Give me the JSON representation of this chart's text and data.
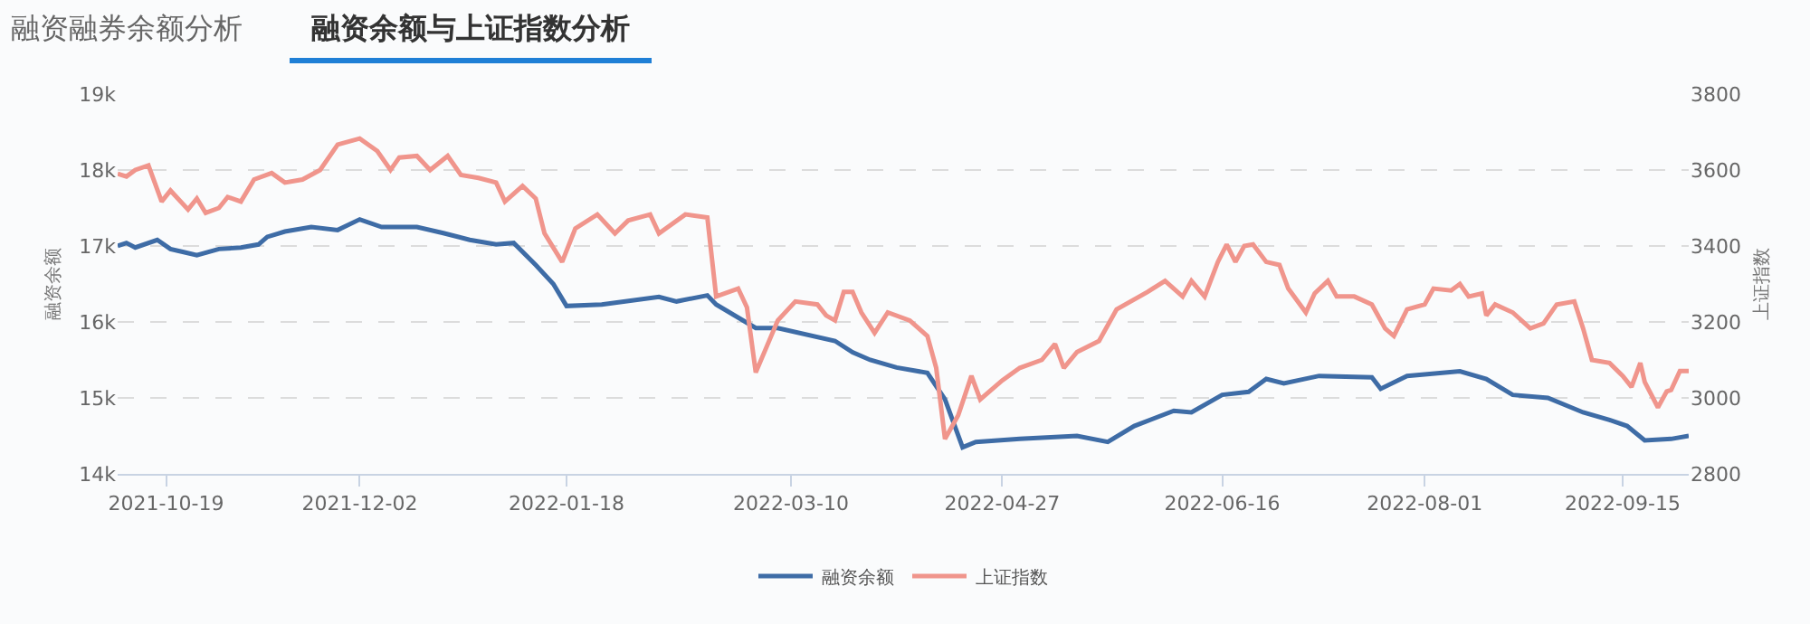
{
  "chart_data": {
    "type": "line",
    "title": "融资余额与上证指数分析",
    "annotations": [
      "融资融券余额分析"
    ],
    "ylabel": "融资余额",
    "y2label": "上证指数",
    "xlim": [
      "2021-10-08",
      "2022-09-30"
    ],
    "xticks": [
      "2021-10-19",
      "2021-12-02",
      "2022-01-18",
      "2022-03-10",
      "2022-04-27",
      "2022-06-16",
      "2022-08-01",
      "2022-09-15"
    ],
    "ylim": [
      14000,
      19000
    ],
    "yticks": [
      {
        "value": 14000,
        "label": "14k"
      },
      {
        "value": 15000,
        "label": "15k"
      },
      {
        "value": 16000,
        "label": "16k"
      },
      {
        "value": 17000,
        "label": "17k"
      },
      {
        "value": 18000,
        "label": "18k"
      },
      {
        "value": 19000,
        "label": "19k"
      }
    ],
    "y2lim": [
      2800,
      3800
    ],
    "y2ticks": [
      2800,
      3000,
      3200,
      3400,
      3600,
      3800
    ],
    "grid": "y",
    "legend": "bottom",
    "marker": "none",
    "line_style": "solid",
    "series": [
      {
        "name": "融资余额",
        "color": "#3e6ca6",
        "x": [
          "2021-10-08",
          "2021-10-10",
          "2021-10-12",
          "2021-10-17",
          "2021-10-20",
          "2021-10-23",
          "2021-10-26",
          "2021-10-31",
          "2021-11-05",
          "2021-11-09",
          "2021-11-11",
          "2021-11-15",
          "2021-11-21",
          "2021-11-27",
          "2021-12-02",
          "2021-12-07",
          "2021-12-15",
          "2021-12-21",
          "2021-12-27",
          "2022-01-02",
          "2022-01-06",
          "2022-01-11",
          "2022-01-15",
          "2022-01-18",
          "2022-01-26",
          "2022-02-08",
          "2022-02-12",
          "2022-02-19",
          "2022-02-21",
          "2022-03-02",
          "2022-03-07",
          "2022-03-20",
          "2022-03-24",
          "2022-03-28",
          "2022-04-03",
          "2022-04-10",
          "2022-04-14",
          "2022-04-18",
          "2022-04-21",
          "2022-05-01",
          "2022-05-14",
          "2022-05-21",
          "2022-05-27",
          "2022-06-05",
          "2022-06-09",
          "2022-06-16",
          "2022-06-22",
          "2022-06-26",
          "2022-06-30",
          "2022-07-08",
          "2022-07-20",
          "2022-07-22",
          "2022-07-28",
          "2022-08-09",
          "2022-08-15",
          "2022-08-21",
          "2022-08-29",
          "2022-09-06",
          "2022-09-12",
          "2022-09-16",
          "2022-09-20",
          "2022-09-26",
          "2022-09-30"
        ],
        "values": [
          17000,
          17040,
          16980,
          17080,
          16960,
          16920,
          16880,
          16960,
          16980,
          17020,
          17120,
          17190,
          17250,
          17210,
          17350,
          17250,
          17250,
          17170,
          17080,
          17020,
          17040,
          16750,
          16500,
          16210,
          16230,
          16330,
          16270,
          16350,
          16230,
          15920,
          15920,
          15750,
          15600,
          15500,
          15400,
          15330,
          14980,
          14350,
          14420,
          14460,
          14500,
          14420,
          14630,
          14830,
          14810,
          15040,
          15080,
          15250,
          15190,
          15290,
          15270,
          15120,
          15290,
          15350,
          15250,
          15040,
          15000,
          14810,
          14710,
          14630,
          14440,
          14460,
          14500
        ]
      },
      {
        "name": "上证指数",
        "color": "#f0958c",
        "axis": "y2",
        "x": [
          "2021-10-08",
          "2021-10-10",
          "2021-10-12",
          "2021-10-15",
          "2021-10-18",
          "2021-10-20",
          "2021-10-24",
          "2021-10-26",
          "2021-10-28",
          "2021-10-31",
          "2021-11-02",
          "2021-11-05",
          "2021-11-08",
          "2021-11-12",
          "2021-11-15",
          "2021-11-19",
          "2021-11-23",
          "2021-11-27",
          "2021-12-02",
          "2021-12-06",
          "2021-12-09",
          "2021-12-11",
          "2021-12-15",
          "2021-12-18",
          "2021-12-22",
          "2021-12-25",
          "2021-12-29",
          "2022-01-02",
          "2022-01-04",
          "2022-01-08",
          "2022-01-11",
          "2022-01-13",
          "2022-01-17",
          "2022-01-20",
          "2022-01-25",
          "2022-01-29",
          "2022-02-01",
          "2022-02-06",
          "2022-02-08",
          "2022-02-14",
          "2022-02-19",
          "2022-02-21",
          "2022-02-26",
          "2022-02-28",
          "2022-03-02",
          "2022-03-07",
          "2022-03-11",
          "2022-03-16",
          "2022-03-18",
          "2022-03-20",
          "2022-03-22",
          "2022-03-24",
          "2022-03-26",
          "2022-03-29",
          "2022-04-01",
          "2022-04-06",
          "2022-04-10",
          "2022-04-12",
          "2022-04-14",
          "2022-04-17",
          "2022-04-20",
          "2022-04-22",
          "2022-04-27",
          "2022-05-01",
          "2022-05-06",
          "2022-05-09",
          "2022-05-11",
          "2022-05-14",
          "2022-05-19",
          "2022-05-23",
          "2022-05-30",
          "2022-06-03",
          "2022-06-07",
          "2022-06-09",
          "2022-06-12",
          "2022-06-15",
          "2022-06-17",
          "2022-06-19",
          "2022-06-21",
          "2022-06-23",
          "2022-06-26",
          "2022-06-29",
          "2022-07-01",
          "2022-07-05",
          "2022-07-07",
          "2022-07-10",
          "2022-07-12",
          "2022-07-16",
          "2022-07-20",
          "2022-07-23",
          "2022-07-25",
          "2022-07-28",
          "2022-08-01",
          "2022-08-03",
          "2022-08-07",
          "2022-08-09",
          "2022-08-11",
          "2022-08-14",
          "2022-08-15",
          "2022-08-17",
          "2022-08-21",
          "2022-08-25",
          "2022-08-28",
          "2022-08-31",
          "2022-09-04",
          "2022-09-06",
          "2022-09-08",
          "2022-09-12",
          "2022-09-15",
          "2022-09-17",
          "2022-09-19",
          "2022-09-20",
          "2022-09-23",
          "2022-09-25",
          "2022-09-26",
          "2022-09-28",
          "2022-09-30"
        ],
        "values": [
          3590,
          3583,
          3600,
          3612,
          3517,
          3546,
          3496,
          3525,
          3487,
          3500,
          3529,
          3517,
          3575,
          3592,
          3567,
          3575,
          3600,
          3667,
          3683,
          3650,
          3600,
          3633,
          3637,
          3600,
          3637,
          3587,
          3579,
          3567,
          3517,
          3558,
          3525,
          3433,
          3358,
          3446,
          3483,
          3433,
          3467,
          3483,
          3433,
          3483,
          3475,
          3267,
          3288,
          3238,
          3067,
          3204,
          3254,
          3246,
          3217,
          3204,
          3279,
          3279,
          3225,
          3171,
          3225,
          3204,
          3163,
          3079,
          2892,
          2954,
          3058,
          2996,
          3046,
          3079,
          3100,
          3142,
          3079,
          3121,
          3150,
          3233,
          3279,
          3308,
          3267,
          3308,
          3267,
          3358,
          3404,
          3358,
          3400,
          3404,
          3358,
          3350,
          3288,
          3225,
          3275,
          3308,
          3267,
          3267,
          3246,
          3183,
          3163,
          3233,
          3246,
          3288,
          3283,
          3300,
          3267,
          3275,
          3217,
          3246,
          3225,
          3183,
          3196,
          3246,
          3254,
          3183,
          3100,
          3092,
          3058,
          3029,
          3092,
          3042,
          2975,
          3017,
          3021,
          3071,
          3071
        ]
      }
    ]
  }
}
